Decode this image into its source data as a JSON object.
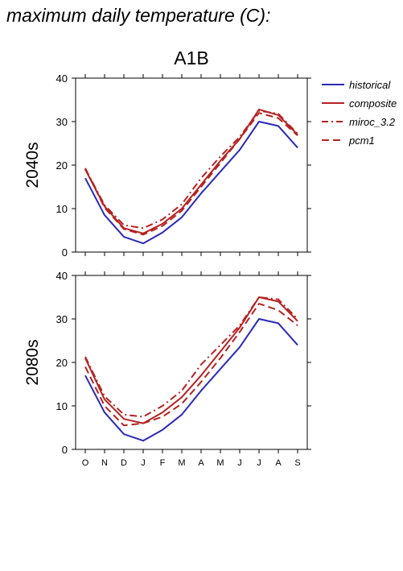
{
  "page": {
    "title": "maximum daily temperature (C):"
  },
  "chart_data": [
    {
      "type": "line",
      "title": "A1B",
      "ylabel": "2040s",
      "xlabel": "",
      "categories": [
        "O",
        "N",
        "D",
        "J",
        "F",
        "M",
        "A",
        "M",
        "J",
        "J",
        "A",
        "S"
      ],
      "ylim": [
        0,
        40
      ],
      "yticks": [
        0,
        10,
        20,
        30,
        40
      ],
      "grid": false,
      "legend": "right",
      "series": [
        {
          "name": "historical",
          "color": "#2a2ab8",
          "style": "solid",
          "values": [
            17,
            8.5,
            3.5,
            2,
            4.5,
            8,
            13.5,
            18.5,
            23.5,
            30,
            29,
            24
          ]
        },
        {
          "name": "composite",
          "color": "#b52222",
          "style": "solid",
          "values": [
            19,
            10.5,
            5.5,
            4.3,
            6.5,
            10,
            15.5,
            21,
            26,
            32.8,
            31.5,
            27
          ]
        },
        {
          "name": "miroc_3.2",
          "color": "#b52222",
          "style": "dashdot",
          "values": [
            19.2,
            10.8,
            6.2,
            5.5,
            7.5,
            11,
            17,
            22,
            26.5,
            32.5,
            31.8,
            27.2
          ]
        },
        {
          "name": "pcm1",
          "color": "#b52222",
          "style": "dashed",
          "values": [
            19.3,
            10.2,
            5.3,
            4,
            6,
            9.5,
            15,
            20.5,
            26,
            32,
            30.8,
            26.8
          ]
        }
      ]
    },
    {
      "type": "line",
      "title": "",
      "ylabel": "2080s",
      "xlabel": "",
      "categories": [
        "O",
        "N",
        "D",
        "J",
        "F",
        "M",
        "A",
        "M",
        "J",
        "J",
        "A",
        "S"
      ],
      "ylim": [
        0,
        40
      ],
      "yticks": [
        0,
        10,
        20,
        30,
        40
      ],
      "grid": false,
      "series": [
        {
          "name": "historical",
          "color": "#2a2ab8",
          "style": "solid",
          "values": [
            17,
            8.5,
            3.5,
            2,
            4.5,
            8,
            13.5,
            18.5,
            23.5,
            30,
            29,
            24
          ]
        },
        {
          "name": "composite",
          "color": "#b52222",
          "style": "solid",
          "values": [
            21,
            11.5,
            7,
            6,
            8.5,
            12,
            17,
            22.5,
            28,
            35,
            34,
            29.5
          ]
        },
        {
          "name": "miroc_3.2",
          "color": "#b52222",
          "style": "dashdot",
          "values": [
            21.3,
            12.2,
            8,
            7.5,
            10,
            13.5,
            19.5,
            24,
            28.5,
            35,
            34.5,
            30
          ]
        },
        {
          "name": "pcm1",
          "color": "#b52222",
          "style": "dashed",
          "values": [
            19,
            10,
            5.5,
            6,
            7.5,
            10.5,
            15.5,
            21,
            27,
            33.5,
            32,
            28.5
          ]
        }
      ]
    }
  ]
}
